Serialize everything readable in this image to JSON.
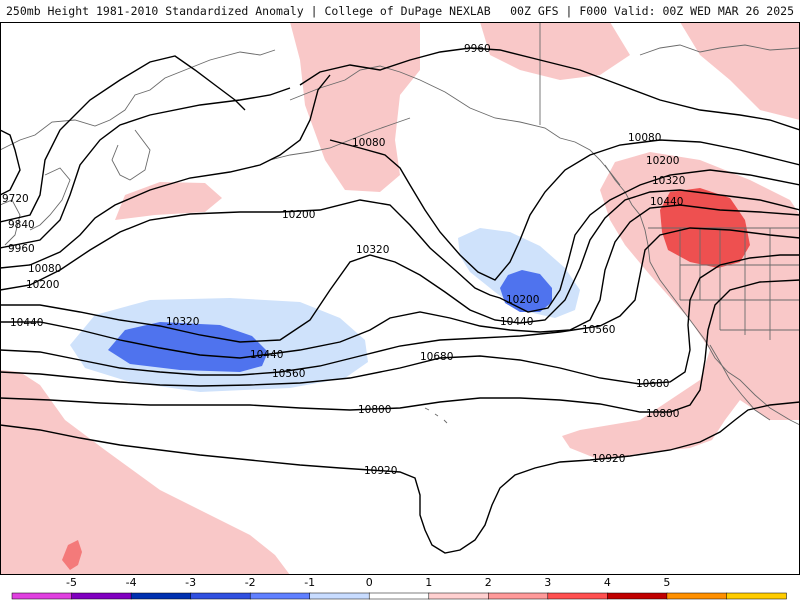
{
  "header": {
    "left": "250mb Height 1981-2010 Standardized Anomaly | College of DuPage NEXLAB",
    "right": "00Z GFS | F000 Valid: 00Z WED MAR 26 2025"
  },
  "contour_labels": {
    "l9720": "9720",
    "l9840": "9840",
    "l9960a": "9960",
    "l9960b": "9960",
    "l10080a": "10080",
    "l10080b": "10080",
    "l10080c": "10080",
    "l10200a": "10200",
    "l10200b": "10200",
    "l10200c": "10200",
    "l10200d": "10200",
    "l10320a": "10320",
    "l10320b": "10320",
    "l10320c": "10320",
    "l10440a": "10440",
    "l10440b": "10440",
    "l10440c": "10440",
    "l10440d": "10440",
    "l10560a": "10560",
    "l10560b": "10560",
    "l10680a": "10680",
    "l10680b": "10680",
    "l10800a": "10800",
    "l10800b": "10800",
    "l10920a": "10920",
    "l10920b": "10920"
  },
  "colorbar": {
    "ticks": [
      "-5",
      "-4",
      "-3",
      "-2",
      "-1",
      "0",
      "1",
      "2",
      "3",
      "4",
      "5"
    ],
    "colors": [
      "#e040e0",
      "#8000c0",
      "#0030b0",
      "#3050e0",
      "#6080ff",
      "#c8dcff",
      "#ffffff",
      "#ffd0d0",
      "#ff9a9a",
      "#ff5050",
      "#c00000",
      "#ff9000",
      "#ffcc00"
    ]
  },
  "anomaly_colors": {
    "light_pink": "#f9c8c8",
    "pink": "#f47a7a",
    "red": "#ee5050",
    "light_blue": "#cfe2fb",
    "blue": "#4f73ee"
  }
}
